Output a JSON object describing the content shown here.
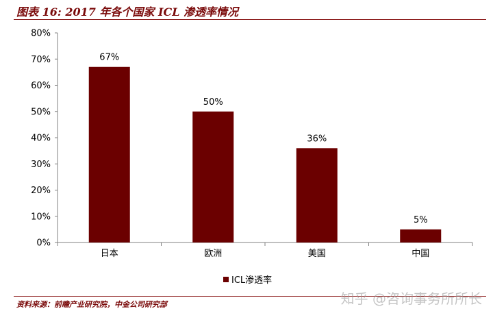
{
  "header": {
    "title": "图表 16: 2017 年各个国家 ICL 渗透率情况"
  },
  "footer": {
    "source": "资料来源：前瞻产业研究院，中金公司研究部"
  },
  "watermark": {
    "text": "知乎 @咨询事务所所长"
  },
  "colors": {
    "bar": "#6b0000",
    "accent": "#7a0a0a",
    "axis": "#808080"
  },
  "chart_data": {
    "type": "bar",
    "title": "",
    "xlabel": "",
    "ylabel": "",
    "categories": [
      "日本",
      "欧洲",
      "美国",
      "中国"
    ],
    "series": [
      {
        "name": "ICL渗透率",
        "values": [
          67,
          50,
          36,
          5
        ]
      }
    ],
    "data_labels": [
      "67%",
      "50%",
      "36%",
      "5%"
    ],
    "y_ticks": [
      "0%",
      "10%",
      "20%",
      "30%",
      "40%",
      "50%",
      "60%",
      "70%",
      "80%"
    ],
    "ylim": [
      0,
      80
    ],
    "grid": false,
    "legend_position": "bottom-center"
  }
}
